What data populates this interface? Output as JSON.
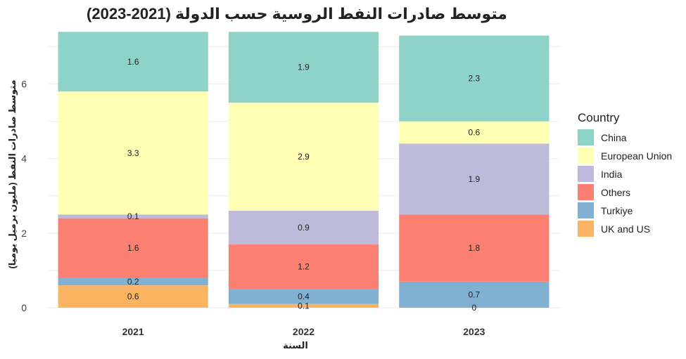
{
  "chart_data": {
    "type": "bar",
    "stacked": true,
    "title": "متوسط صادرات النفط الروسية حسب الدولة (2021-2023)",
    "xlabel": "السنة",
    "ylabel": "متوسط صادرات النفط (مليون برميل يوميا)",
    "ylim": [
      0,
      7.5
    ],
    "yticks": [
      0,
      2,
      4,
      6
    ],
    "grid": true,
    "legend": {
      "title": "Country",
      "position": "right"
    },
    "categories": [
      "2021",
      "2022",
      "2023"
    ],
    "series": [
      {
        "name": "China",
        "color": "#8dd3c7",
        "values": [
          1.6,
          1.9,
          2.3
        ],
        "labels": [
          "1.6",
          "1.9",
          "2.3"
        ]
      },
      {
        "name": "European Union",
        "color": "#ffffb3",
        "values": [
          3.3,
          2.9,
          0.6
        ],
        "labels": [
          "3.3",
          "2.9",
          "0.6"
        ]
      },
      {
        "name": "India",
        "color": "#bebada",
        "values": [
          0.1,
          0.9,
          1.9
        ],
        "labels": [
          "0.1",
          "0.9",
          "1.9"
        ]
      },
      {
        "name": "Others",
        "color": "#fb8072",
        "values": [
          1.6,
          1.2,
          1.8
        ],
        "labels": [
          "1.6",
          "1.2",
          "1.8"
        ]
      },
      {
        "name": "Turkiye",
        "color": "#80b1d3",
        "values": [
          0.2,
          0.4,
          0.7
        ],
        "labels": [
          "0.2",
          "0.4",
          "0.7"
        ]
      },
      {
        "name": "UK and US",
        "color": "#fdb462",
        "values": [
          0.6,
          0.1,
          0.0
        ],
        "labels": [
          "0.6",
          "0.1",
          "0"
        ]
      }
    ]
  }
}
